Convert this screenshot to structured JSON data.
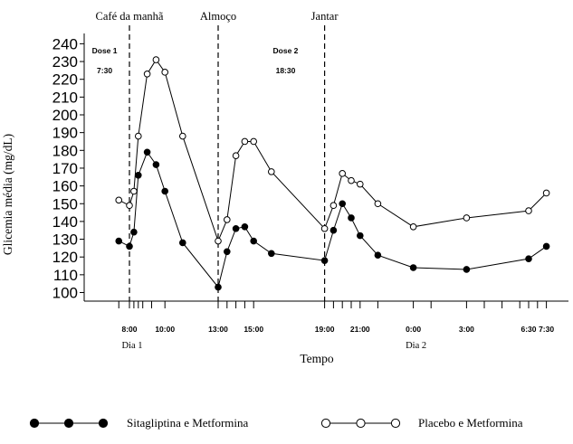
{
  "chart_data": {
    "type": "line",
    "xlabel": "Tempo",
    "ylabel": "Glicemia média (mg/dL)",
    "ylim": [
      100,
      240
    ],
    "yticks": [
      100,
      110,
      120,
      130,
      140,
      150,
      160,
      170,
      180,
      190,
      200,
      210,
      220,
      230,
      240
    ],
    "xlim_hours": [
      0,
      32.5
    ],
    "xticks": [
      {
        "h": 0,
        "label": "8:00"
      },
      {
        "h": 2,
        "label": "10:00"
      },
      {
        "h": 5,
        "label": "13:00"
      },
      {
        "h": 7,
        "label": "15:00"
      },
      {
        "h": 11,
        "label": "19:00"
      },
      {
        "h": 13,
        "label": "21:00"
      },
      {
        "h": 16,
        "label": "0:00"
      },
      {
        "h": 19,
        "label": "3:00"
      },
      {
        "h": 22.5,
        "label": "6:30"
      },
      {
        "h": 23.5,
        "label": "7:30"
      }
    ],
    "extra_ticks_hours": [
      -0.6,
      0.25,
      0.5,
      0.75,
      1.25,
      5.5,
      6,
      6.5,
      11.5,
      12,
      12.5,
      14,
      17,
      20,
      21,
      22,
      23
    ],
    "day_labels": [
      {
        "h": 0,
        "label": "Dia 1"
      },
      {
        "h": 16,
        "label": "Dia 2"
      }
    ],
    "meal_lines": [
      {
        "h": 0,
        "label": "Café da manhã"
      },
      {
        "h": 5,
        "label": "Almoço"
      },
      {
        "h": 11,
        "label": "Jantar"
      }
    ],
    "dose_annotations": [
      {
        "h": -1.4,
        "label": "Dose 1",
        "time": "7:30"
      },
      {
        "h": 8.8,
        "label": "Dose 2",
        "time": "18:30"
      }
    ],
    "series": [
      {
        "name": "Sitagliptina e Metformina",
        "marker": "filled",
        "x": [
          -0.6,
          0,
          0.25,
          0.5,
          1,
          1.5,
          2,
          3,
          5,
          5.5,
          6,
          6.5,
          7,
          8,
          11,
          11.5,
          12,
          12.5,
          13,
          14,
          16,
          19,
          22.5,
          23.5
        ],
        "y": [
          129,
          126,
          134,
          166,
          179,
          172,
          157,
          128,
          103,
          123,
          136,
          137,
          129,
          122,
          118,
          135,
          150,
          142,
          132,
          121,
          114,
          113,
          119,
          126
        ]
      },
      {
        "name": "Placebo e Metformina",
        "marker": "open",
        "x": [
          -0.6,
          0,
          0.25,
          0.5,
          1,
          1.5,
          2,
          3,
          5,
          5.5,
          6,
          6.5,
          7,
          8,
          11,
          11.5,
          12,
          12.5,
          13,
          14,
          16,
          19,
          22.5,
          23.5
        ],
        "y": [
          152,
          149,
          157,
          188,
          223,
          231,
          224,
          188,
          129,
          141,
          177,
          185,
          185,
          168,
          136,
          149,
          167,
          163,
          161,
          150,
          137,
          142,
          146,
          156
        ]
      }
    ]
  }
}
